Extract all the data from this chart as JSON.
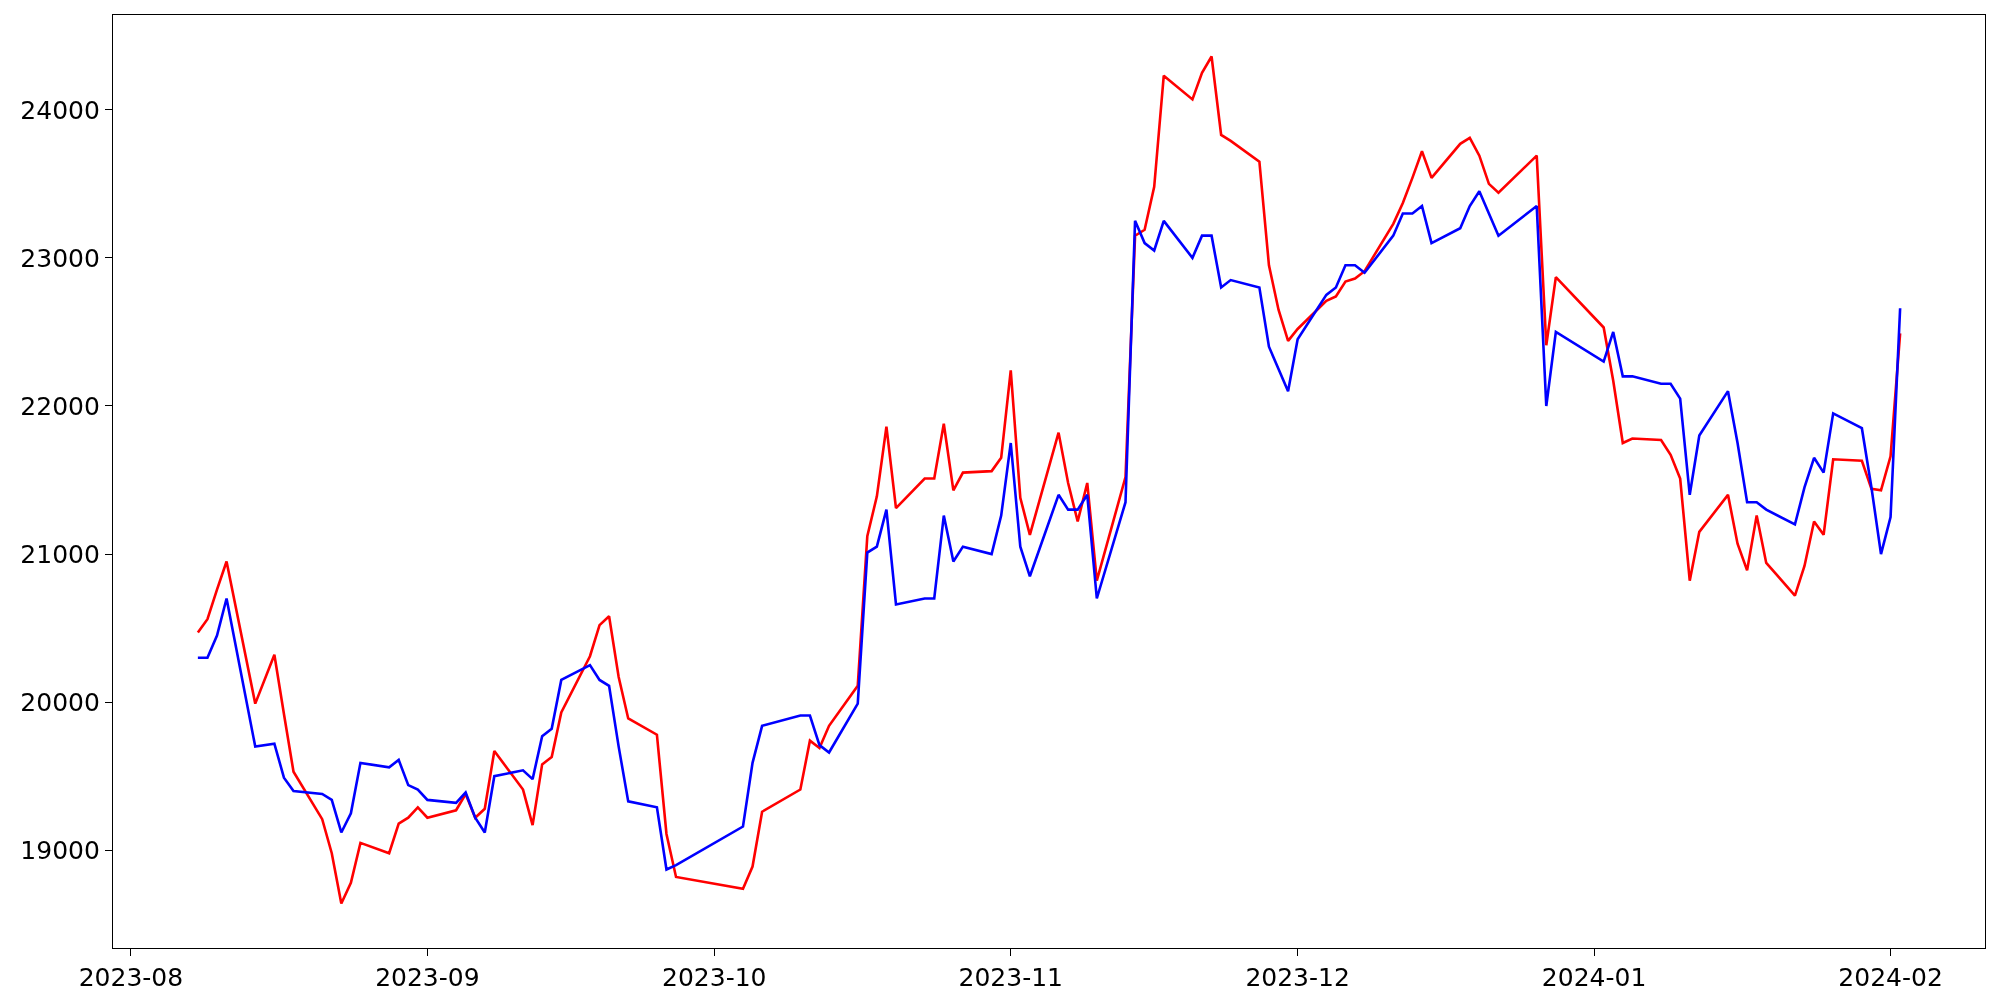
{
  "chart_data": {
    "type": "line",
    "x": [
      "2023-08-08",
      "2023-08-09",
      "2023-08-10",
      "2023-08-11",
      "2023-08-14",
      "2023-08-16",
      "2023-08-17",
      "2023-08-18",
      "2023-08-21",
      "2023-08-22",
      "2023-08-23",
      "2023-08-24",
      "2023-08-25",
      "2023-08-28",
      "2023-08-29",
      "2023-08-30",
      "2023-08-31",
      "2023-09-01",
      "2023-09-04",
      "2023-09-05",
      "2023-09-06",
      "2023-09-07",
      "2023-09-08",
      "2023-09-11",
      "2023-09-12",
      "2023-09-13",
      "2023-09-14",
      "2023-09-15",
      "2023-09-18",
      "2023-09-19",
      "2023-09-20",
      "2023-09-21",
      "2023-09-22",
      "2023-09-25",
      "2023-09-26",
      "2023-09-27",
      "2023-10-04",
      "2023-10-05",
      "2023-10-06",
      "2023-10-10",
      "2023-10-11",
      "2023-10-12",
      "2023-10-13",
      "2023-10-16",
      "2023-10-17",
      "2023-10-18",
      "2023-10-19",
      "2023-10-20",
      "2023-10-23",
      "2023-10-24",
      "2023-10-25",
      "2023-10-26",
      "2023-10-27",
      "2023-10-30",
      "2023-10-31",
      "2023-11-01",
      "2023-11-02",
      "2023-11-03",
      "2023-11-06",
      "2023-11-07",
      "2023-11-08",
      "2023-11-09",
      "2023-11-10",
      "2023-11-13",
      "2023-11-14",
      "2023-11-15",
      "2023-11-16",
      "2023-11-17",
      "2023-11-20",
      "2023-11-21",
      "2023-11-22",
      "2023-11-23",
      "2023-11-24",
      "2023-11-27",
      "2023-11-28",
      "2023-11-29",
      "2023-11-30",
      "2023-12-01",
      "2023-12-04",
      "2023-12-05",
      "2023-12-06",
      "2023-12-07",
      "2023-12-08",
      "2023-12-11",
      "2023-12-12",
      "2023-12-13",
      "2023-12-14",
      "2023-12-15",
      "2023-12-18",
      "2023-12-19",
      "2023-12-20",
      "2023-12-21",
      "2023-12-22",
      "2023-12-26",
      "2023-12-27",
      "2023-12-28",
      "2024-01-02",
      "2024-01-03",
      "2024-01-04",
      "2024-01-05",
      "2024-01-08",
      "2024-01-09",
      "2024-01-10",
      "2024-01-11",
      "2024-01-12",
      "2024-01-15",
      "2024-01-16",
      "2024-01-17",
      "2024-01-18",
      "2024-01-19",
      "2024-01-22",
      "2024-01-23",
      "2024-01-24",
      "2024-01-25",
      "2024-01-26",
      "2024-01-29",
      "2024-01-30",
      "2024-01-31",
      "2024-02-01",
      "2024-02-02"
    ],
    "series": [
      {
        "color": "#ff0000",
        "values": [
          20470,
          20560,
          20760,
          20950,
          19990,
          20320,
          19920,
          19530,
          19210,
          18980,
          18640,
          18780,
          19050,
          18980,
          19180,
          19220,
          19290,
          19220,
          19270,
          19380,
          19220,
          19280,
          19670,
          19410,
          19170,
          19580,
          19630,
          19930,
          20310,
          20520,
          20580,
          20170,
          19890,
          19780,
          19110,
          18820,
          18740,
          18890,
          19260,
          19410,
          19740,
          19690,
          19840,
          20110,
          21120,
          21390,
          21860,
          21310,
          21510,
          21510,
          21880,
          21430,
          21550,
          21560,
          21650,
          22240,
          21380,
          21130,
          21820,
          21480,
          21220,
          21480,
          20820,
          21520,
          23150,
          23190,
          23480,
          24230,
          24070,
          24250,
          24360,
          23830,
          23790,
          23650,
          22950,
          22650,
          22440,
          22520,
          22710,
          22740,
          22840,
          22860,
          22910,
          23230,
          23370,
          23540,
          23720,
          23540,
          23770,
          23810,
          23690,
          23500,
          23440,
          23690,
          22410,
          22870,
          22530,
          22170,
          21750,
          21780,
          21770,
          21670,
          21510,
          20820,
          21150,
          21400,
          21070,
          20890,
          21260,
          20940,
          20720,
          20920,
          21220,
          21130,
          21640,
          21630,
          21440,
          21430,
          21660,
          22490
        ]
      },
      {
        "color": "#0000ff",
        "values": [
          20300,
          20300,
          20450,
          20700,
          19700,
          19720,
          19490,
          19400,
          19380,
          19340,
          19120,
          19250,
          19590,
          19560,
          19610,
          19440,
          19410,
          19340,
          19320,
          19390,
          19220,
          19120,
          19500,
          19540,
          19480,
          19770,
          19820,
          20150,
          20250,
          20150,
          20110,
          19700,
          19330,
          19290,
          18870,
          18900,
          19160,
          19590,
          19840,
          19910,
          19910,
          19710,
          19660,
          19990,
          21010,
          21050,
          21300,
          20660,
          20700,
          20700,
          21260,
          20950,
          21050,
          21000,
          21260,
          21750,
          21050,
          20850,
          21400,
          21300,
          21300,
          21400,
          20700,
          21350,
          23250,
          23100,
          23050,
          23250,
          23000,
          23150,
          23150,
          22800,
          22850,
          22800,
          22400,
          22250,
          22100,
          22450,
          22750,
          22800,
          22950,
          22950,
          22900,
          23150,
          23300,
          23300,
          23350,
          23100,
          23200,
          23350,
          23450,
          23300,
          23150,
          23350,
          22000,
          22500,
          22300,
          22500,
          22200,
          22200,
          22150,
          22150,
          22050,
          21400,
          21800,
          22100,
          21750,
          21350,
          21350,
          21300,
          21200,
          21450,
          21650,
          21550,
          21950,
          21850,
          21450,
          21000,
          21250,
          22660
        ]
      }
    ],
    "xlim": [
      "2023-07-30T03:00",
      "2024-02-10T21:00"
    ],
    "xticks": [
      {
        "value": "2023-08-01",
        "label": "2023-08"
      },
      {
        "value": "2023-09-01",
        "label": "2023-09"
      },
      {
        "value": "2023-10-01",
        "label": "2023-10"
      },
      {
        "value": "2023-11-01",
        "label": "2023-11"
      },
      {
        "value": "2023-12-01",
        "label": "2023-12"
      },
      {
        "value": "2024-01-01",
        "label": "2024-01"
      },
      {
        "value": "2024-02-01",
        "label": "2024-02"
      }
    ],
    "ylim": [
      18340,
      24640
    ],
    "yticks": [
      19000,
      20000,
      21000,
      22000,
      23000,
      24000
    ],
    "grid": false,
    "marker": "none",
    "line_style": "solid"
  }
}
